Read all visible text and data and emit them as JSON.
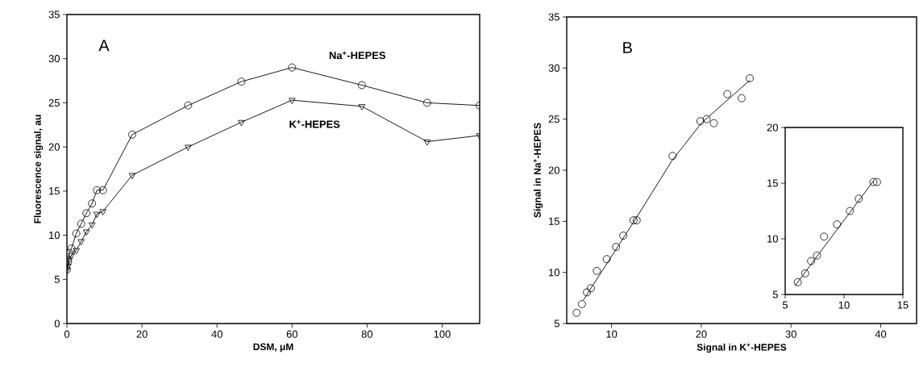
{
  "chart_data": [
    {
      "type": "line",
      "title": "A",
      "xlabel": "DSM, μM",
      "ylabel": "Fluorescence signal, au",
      "x": [
        0,
        0.3,
        0.6,
        1.2,
        2.5,
        3.8,
        5.2,
        6.7,
        8.0,
        9.6,
        17.4,
        32.3,
        46.5,
        60,
        78.6,
        96,
        110
      ],
      "series": [
        {
          "name": "Na$^{+}$-HEPES",
          "color": "#000000",
          "marker": "circle",
          "values": [
            6.1,
            7.0,
            8.0,
            8.5,
            10.2,
            11.3,
            12.5,
            13.6,
            15.1,
            15.1,
            21.4,
            24.7,
            27.4,
            29.0,
            27.0,
            25.0,
            24.7
          ]
        },
        {
          "name": "K$^{+}$-HEPES",
          "color": "#000000",
          "marker": "triangle",
          "values": [
            6.1,
            6.5,
            7.2,
            7.7,
            8.3,
            9.3,
            10.4,
            11.2,
            12.4,
            12.7,
            16.8,
            20.0,
            22.8,
            25.3,
            24.6,
            20.6,
            21.3
          ]
        }
      ],
      "xlim": [
        0,
        110
      ],
      "ylim": [
        0,
        35
      ],
      "xticks": [
        0,
        20,
        40,
        60,
        80,
        100
      ],
      "yticks": [
        0,
        5,
        10,
        15,
        20,
        25,
        30,
        35
      ]
    },
    {
      "type": "scatter",
      "title": "B",
      "xlabel": "Signal in K$^{+}$-HEPES",
      "ylabel": "Signal in Na$^{+}$-HEPES",
      "series": [
        {
          "color": "#000000",
          "marker": "circle",
          "x": [
            6.1,
            6.7,
            7.25,
            7.7,
            8.35,
            9.46,
            10.5,
            11.3,
            12.45,
            12.8,
            16.8,
            19.9,
            20.6,
            21.4,
            22.9,
            24.5,
            25.4
          ],
          "values": [
            6.05,
            6.9,
            8.05,
            8.45,
            10.15,
            11.3,
            12.5,
            13.6,
            15.1,
            15.1,
            21.4,
            24.8,
            25.0,
            24.6,
            27.45,
            27.05,
            29.0
          ]
        },
        {
          "type": "line",
          "color": "#000000",
          "marker": "none",
          "x": [
            6.86,
            12.8,
            16.7,
            20.0,
            25.4
          ],
          "values": [
            7.3,
            15.4,
            20.9,
            24.6,
            28.8
          ]
        }
      ],
      "xlim": [
        5,
        44
      ],
      "ylim": [
        5,
        35
      ],
      "xticks": [
        10,
        20,
        30,
        40
      ],
      "yticks": [
        5,
        10,
        15,
        20,
        25,
        30,
        35
      ]
    },
    {
      "type": "scatter",
      "series": [
        {
          "color": "#000000",
          "marker": "circle",
          "x": [
            6.07,
            6.7,
            7.2,
            7.7,
            8.3,
            9.4,
            10.5,
            11.25,
            12.5,
            12.8
          ],
          "values": [
            6.1,
            6.9,
            8.0,
            8.5,
            10.2,
            11.3,
            12.5,
            13.6,
            15.1,
            15.1
          ]
        },
        {
          "type": "line",
          "color": "#000000",
          "marker": "none",
          "x": [
            5.85,
            12.5
          ],
          "values": [
            5.8,
            15.2
          ]
        }
      ],
      "xlim": [
        5,
        15
      ],
      "ylim": [
        5,
        20
      ],
      "xticks": [
        5,
        10,
        15
      ],
      "yticks": [
        5,
        10,
        15,
        20
      ]
    }
  ]
}
